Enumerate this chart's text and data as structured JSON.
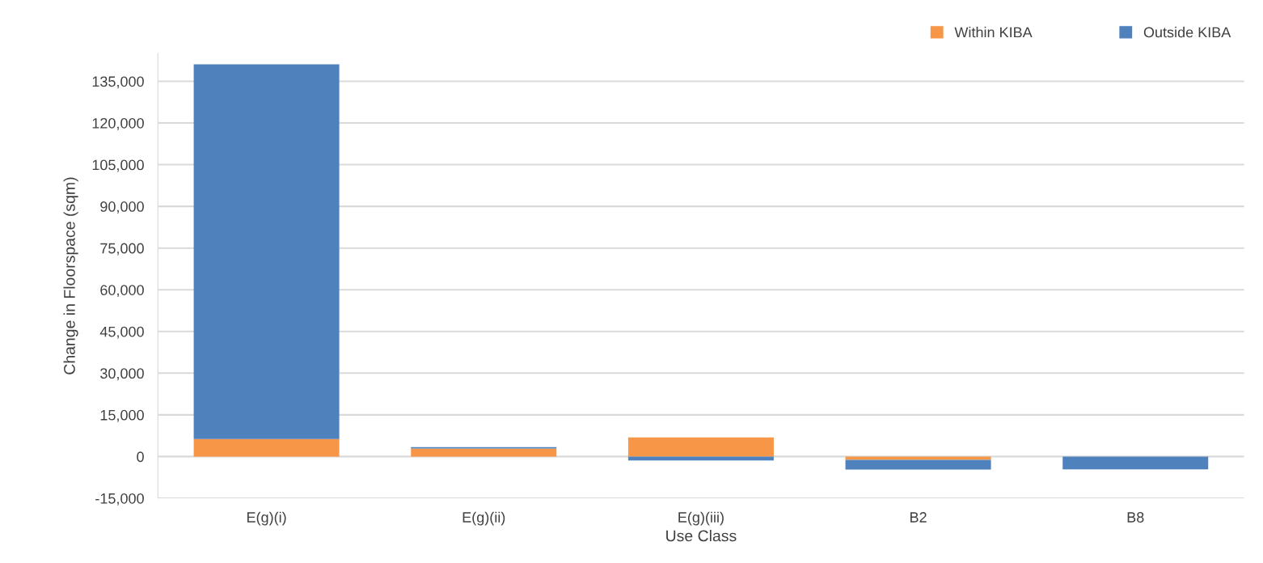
{
  "chart_data": {
    "type": "bar",
    "stacked": true,
    "xlabel": "Use Class",
    "ylabel": "Change in Floorspace (sqm)",
    "categories": [
      "E(g)(i)",
      "E(g)(ii)",
      "E(g)(iii)",
      "B2",
      "B8"
    ],
    "series": [
      {
        "name": "Within KIBA",
        "color": "#f79646",
        "values": [
          6300,
          2900,
          6900,
          -1200,
          0
        ]
      },
      {
        "name": "Outside KIBA",
        "color": "#4f81bd",
        "values": [
          134800,
          500,
          -1400,
          -3500,
          -4600
        ]
      }
    ],
    "ylim": [
      -15000,
      145000
    ],
    "yticks": [
      {
        "value": -15000,
        "label": "-15,000"
      },
      {
        "value": 0,
        "label": "0"
      },
      {
        "value": 15000,
        "label": "15,000"
      },
      {
        "value": 30000,
        "label": "30,000"
      },
      {
        "value": 45000,
        "label": "45,000"
      },
      {
        "value": 60000,
        "label": "60,000"
      },
      {
        "value": 75000,
        "label": "75,000"
      },
      {
        "value": 90000,
        "label": "90,000"
      },
      {
        "value": 105000,
        "label": "105,000"
      },
      {
        "value": 120000,
        "label": "120,000"
      },
      {
        "value": 135000,
        "label": "135,000"
      }
    ],
    "grid": "y",
    "legend": "top right"
  }
}
